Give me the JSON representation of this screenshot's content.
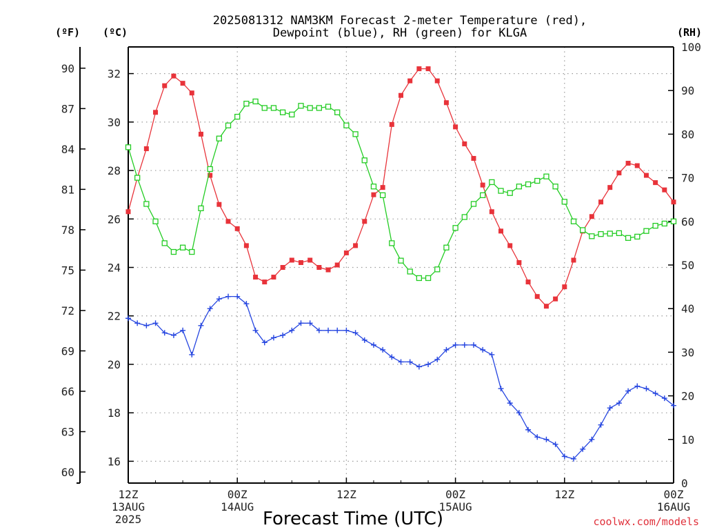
{
  "chart_data": {
    "type": "line",
    "title_line1": "2025081312 NAM3KM Forecast 2-meter Temperature (red),",
    "title_line2": "Dewpoint (blue), RH (green) for KLGA",
    "xlabel": "Forecast Time (UTC)",
    "credit": "coolwx.com/models",
    "units": {
      "fahrenheit": "(ºF)",
      "celsius": "(ºC)",
      "rh": "(RH)"
    },
    "x_ticks": [
      {
        "hour": 0,
        "label": "12Z",
        "sub1": "13AUG",
        "sub2": "2025"
      },
      {
        "hour": 12,
        "label": "00Z",
        "sub1": "14AUG",
        "sub2": ""
      },
      {
        "hour": 24,
        "label": "12Z",
        "sub1": "",
        "sub2": ""
      },
      {
        "hour": 36,
        "label": "00Z",
        "sub1": "15AUG",
        "sub2": ""
      },
      {
        "hour": 48,
        "label": "12Z",
        "sub1": "",
        "sub2": ""
      },
      {
        "hour": 60,
        "label": "00Z",
        "sub1": "16AUG",
        "sub2": ""
      }
    ],
    "xlim": [
      0,
      60
    ],
    "celsius_axis": {
      "range": [
        15.1,
        33.1
      ],
      "ticks": [
        16,
        18,
        20,
        22,
        24,
        26,
        28,
        30,
        32
      ]
    },
    "fahrenheit_axis": {
      "ticks": [
        60,
        63,
        66,
        69,
        72,
        75,
        78,
        81,
        84,
        87,
        90
      ]
    },
    "rh_axis": {
      "range": [
        0,
        100
      ],
      "ticks": [
        0,
        10,
        20,
        30,
        40,
        50,
        60,
        70,
        80,
        90,
        100
      ]
    },
    "grid": true,
    "series": [
      {
        "name": "Temperature (red)",
        "axis": "celsius",
        "color": "#e8333a",
        "marker": "filled-square",
        "x": [
          0,
          1,
          2,
          3,
          4,
          5,
          6,
          7,
          8,
          9,
          10,
          11,
          12,
          13,
          14,
          15,
          16,
          17,
          18,
          19,
          20,
          21,
          22,
          23,
          24,
          25,
          26,
          27,
          28,
          29,
          30,
          31,
          32,
          33,
          34,
          35,
          36,
          37,
          38,
          39,
          40,
          41,
          42,
          43,
          44,
          45,
          46,
          47,
          48,
          49,
          50,
          51,
          52,
          53,
          54,
          55,
          56,
          57,
          58,
          59,
          60
        ],
        "values": [
          26.3,
          27.7,
          28.9,
          30.4,
          31.5,
          31.9,
          31.6,
          31.2,
          29.5,
          27.8,
          26.6,
          25.9,
          25.6,
          24.9,
          23.6,
          23.4,
          23.6,
          24.0,
          24.3,
          24.2,
          24.3,
          24.0,
          23.9,
          24.1,
          24.6,
          24.9,
          25.9,
          27.0,
          27.3,
          29.9,
          31.1,
          31.7,
          32.2,
          32.2,
          31.7,
          30.8,
          29.8,
          29.1,
          28.5,
          27.4,
          26.3,
          25.5,
          24.9,
          24.2,
          23.4,
          22.8,
          22.4,
          22.7,
          23.2,
          24.3,
          25.5,
          26.1,
          26.7,
          27.3,
          27.9,
          28.3,
          28.2,
          27.8,
          27.5,
          27.2,
          26.7
        ]
      },
      {
        "name": "Dewpoint (blue)",
        "axis": "celsius",
        "color": "#2545e0",
        "marker": "plus",
        "x": [
          0,
          1,
          2,
          3,
          4,
          5,
          6,
          7,
          8,
          9,
          10,
          11,
          12,
          13,
          14,
          15,
          16,
          17,
          18,
          19,
          20,
          21,
          22,
          23,
          24,
          25,
          26,
          27,
          28,
          29,
          30,
          31,
          32,
          33,
          34,
          35,
          36,
          37,
          38,
          39,
          40,
          41,
          42,
          43,
          44,
          45,
          46,
          47,
          48,
          49,
          50,
          51,
          52,
          53,
          54,
          55,
          56,
          57,
          58,
          59,
          60
        ],
        "values": [
          21.9,
          21.7,
          21.6,
          21.7,
          21.3,
          21.2,
          21.4,
          20.4,
          21.6,
          22.3,
          22.7,
          22.8,
          22.8,
          22.5,
          21.4,
          20.9,
          21.1,
          21.2,
          21.4,
          21.7,
          21.7,
          21.4,
          21.4,
          21.4,
          21.4,
          21.3,
          21.0,
          20.8,
          20.6,
          20.3,
          20.1,
          20.1,
          19.9,
          20.0,
          20.2,
          20.6,
          20.8,
          20.8,
          20.8,
          20.6,
          20.4,
          19.0,
          18.4,
          18.0,
          17.3,
          17.0,
          16.9,
          16.7,
          16.2,
          16.1,
          16.5,
          16.9,
          17.5,
          18.2,
          18.4,
          18.9,
          19.1,
          19.0,
          18.8,
          18.6,
          18.3
        ]
      },
      {
        "name": "RH (green)",
        "axis": "rh",
        "color": "#22cc22",
        "marker": "open-square",
        "x": [
          0,
          1,
          2,
          3,
          4,
          5,
          6,
          7,
          8,
          9,
          10,
          11,
          12,
          13,
          14,
          15,
          16,
          17,
          18,
          19,
          20,
          21,
          22,
          23,
          24,
          25,
          26,
          27,
          28,
          29,
          30,
          31,
          32,
          33,
          34,
          35,
          36,
          37,
          38,
          39,
          40,
          41,
          42,
          43,
          44,
          45,
          46,
          47,
          48,
          49,
          50,
          51,
          52,
          53,
          54,
          55,
          56,
          57,
          58,
          59,
          60
        ],
        "values": [
          77,
          70,
          64,
          60,
          55,
          53,
          54,
          53,
          63,
          72,
          79,
          82,
          84,
          87,
          87.5,
          86,
          86,
          85,
          84.5,
          86.5,
          86,
          86,
          86.3,
          85,
          82,
          80,
          74,
          68,
          66,
          55,
          51,
          48.5,
          47,
          47,
          49,
          54,
          58.5,
          61,
          64,
          66,
          69,
          67,
          66.5,
          68,
          68.5,
          69.3,
          70.3,
          68,
          64.5,
          60,
          58,
          56.6,
          57.1,
          57.2,
          57.3,
          56.2,
          56.5,
          57.8,
          59,
          59.5,
          60
        ]
      }
    ]
  }
}
